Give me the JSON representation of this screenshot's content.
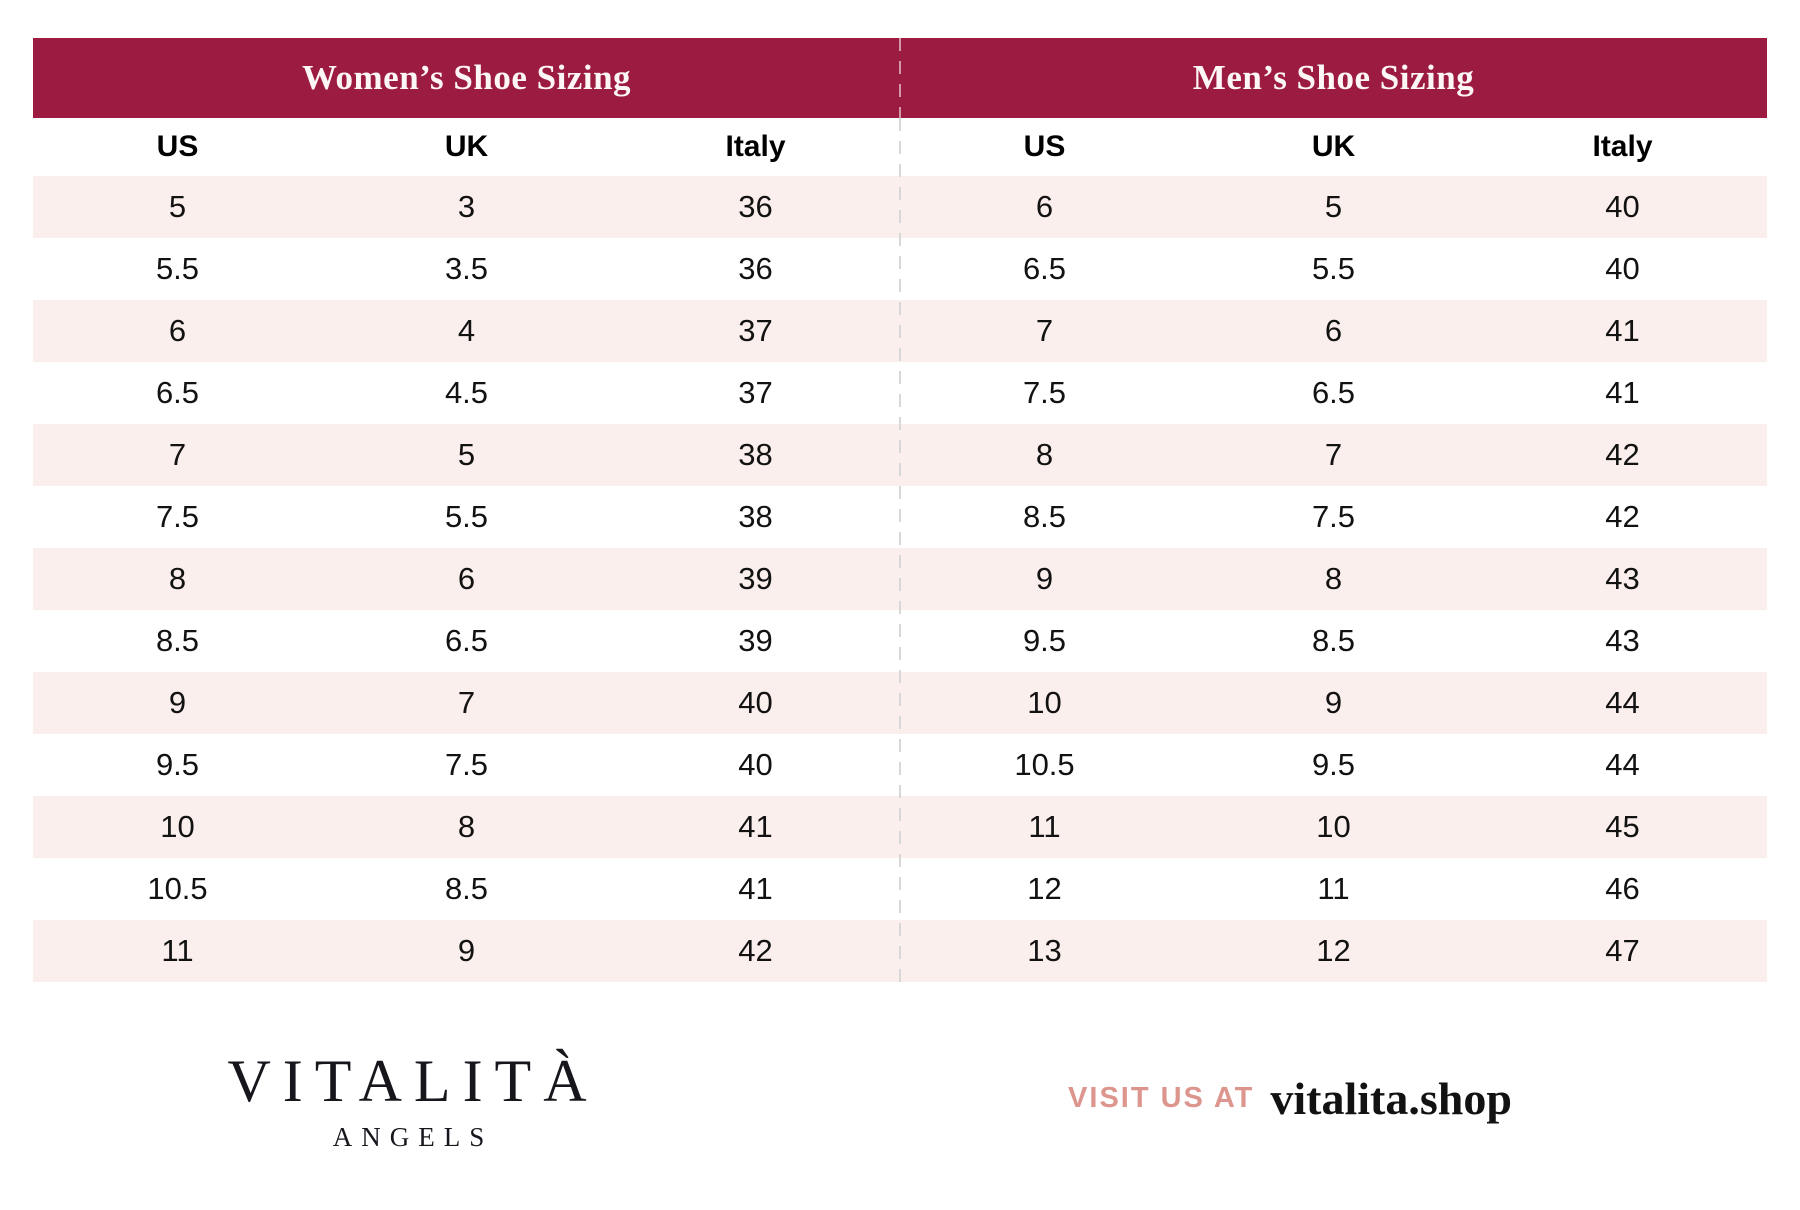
{
  "colors": {
    "header_bg": "#9C1B41",
    "header_text": "#FDF6F6",
    "row_pink": "#FBEFED",
    "row_white": "#FFFFFF",
    "divider_gray": "#D8D8D8",
    "accent_salmon": "#DD968E",
    "text_dark": "#121212"
  },
  "chart_data": [
    {
      "type": "table",
      "title": "Women’s Shoe Sizing",
      "columns": [
        "US",
        "UK",
        "Italy"
      ],
      "rows": [
        [
          "5",
          "3",
          "36"
        ],
        [
          "5.5",
          "3.5",
          "36"
        ],
        [
          "6",
          "4",
          "37"
        ],
        [
          "6.5",
          "4.5",
          "37"
        ],
        [
          "7",
          "5",
          "38"
        ],
        [
          "7.5",
          "5.5",
          "38"
        ],
        [
          "8",
          "6",
          "39"
        ],
        [
          "8.5",
          "6.5",
          "39"
        ],
        [
          "9",
          "7",
          "40"
        ],
        [
          "9.5",
          "7.5",
          "40"
        ],
        [
          "10",
          "8",
          "41"
        ],
        [
          "10.5",
          "8.5",
          "41"
        ],
        [
          "11",
          "9",
          "42"
        ]
      ]
    },
    {
      "type": "table",
      "title": "Men’s Shoe Sizing",
      "columns": [
        "US",
        "UK",
        "Italy"
      ],
      "rows": [
        [
          "6",
          "5",
          "40"
        ],
        [
          "6.5",
          "5.5",
          "40"
        ],
        [
          "7",
          "6",
          "41"
        ],
        [
          "7.5",
          "6.5",
          "41"
        ],
        [
          "8",
          "7",
          "42"
        ],
        [
          "8.5",
          "7.5",
          "42"
        ],
        [
          "9",
          "8",
          "43"
        ],
        [
          "9.5",
          "8.5",
          "43"
        ],
        [
          "10",
          "9",
          "44"
        ],
        [
          "10.5",
          "9.5",
          "44"
        ],
        [
          "11",
          "10",
          "45"
        ],
        [
          "12",
          "11",
          "46"
        ],
        [
          "13",
          "12",
          "47"
        ]
      ]
    }
  ],
  "footer": {
    "brand": "VITALITÀ",
    "brand_sub": "ANGELS",
    "visit_label": "VISIT US AT",
    "visit_url": "vitalita.shop"
  }
}
